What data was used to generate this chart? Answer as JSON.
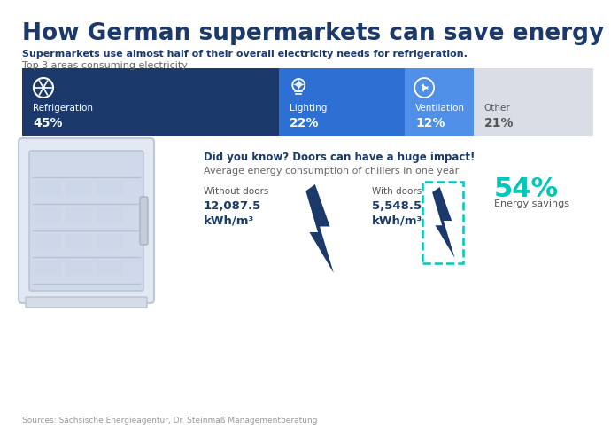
{
  "title": "How German supermarkets can save energy",
  "subtitle_bold": "Supermarkets use almost half of their overall electricity needs for refrigeration.",
  "subtitle_light": "Top 3 areas consuming electricity",
  "bar_segments": [
    {
      "label": "Refrigeration",
      "pct": "45%",
      "value": 45,
      "color": "#1b3a6b",
      "text_color": "#ffffff"
    },
    {
      "label": "Lighting",
      "pct": "22%",
      "value": 22,
      "color": "#2e6fd4",
      "text_color": "#ffffff"
    },
    {
      "label": "Ventilation",
      "pct": "12%",
      "value": 12,
      "color": "#5090e8",
      "text_color": "#ffffff"
    },
    {
      "label": "Other",
      "pct": "21%",
      "value": 21,
      "color": "#d8dde6",
      "text_color": "#555555"
    }
  ],
  "did_you_know_bold": "Did you know? Doors can have a huge impact!",
  "did_you_know_light": "Average energy consumption of chillers in one year",
  "without_doors_label": "Without doors",
  "without_doors_value": "12,087.5\nkWh/m³",
  "with_doors_label": "With doors",
  "with_doors_value": "5,548.5\nkWh/m³",
  "savings_pct": "54%",
  "savings_label": "Energy savings",
  "sources": "Sources: Sächsische Energieagentur, Dr. Steinmaß Managementberatung",
  "bg_color": "#ffffff",
  "title_color": "#1b3a6b",
  "accent_teal": "#00c8b8"
}
